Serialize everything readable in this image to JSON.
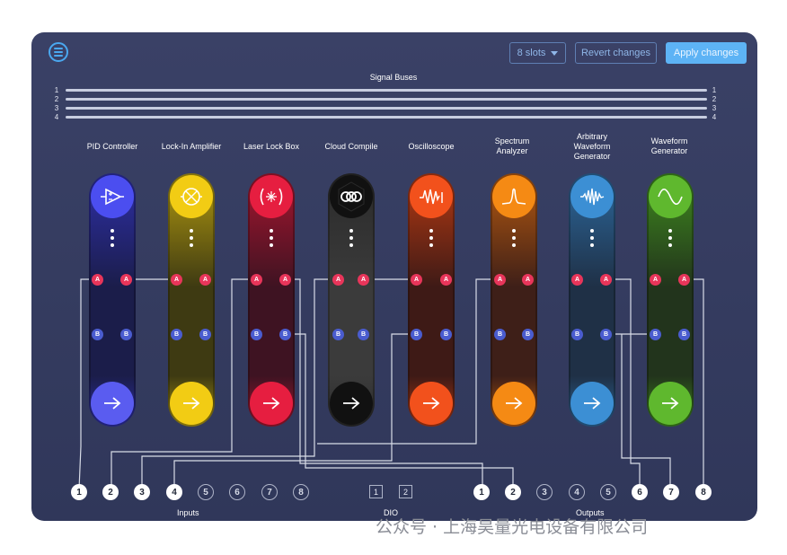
{
  "header": {
    "slots_label": "8 slots",
    "revert_label": "Revert changes",
    "apply_label": "Apply changes"
  },
  "buses": {
    "title": "Signal Buses",
    "numbers": [
      "1",
      "2",
      "3",
      "4"
    ]
  },
  "instruments": [
    {
      "label": "PID Controller",
      "color": "#3f3fd6",
      "icon": "pid-amplifier-icon"
    },
    {
      "label": "Lock-In Amplifier",
      "color": "#e6c21a",
      "icon": "lock-in-icon"
    },
    {
      "label": "Laser Lock Box",
      "color": "#e0203f",
      "icon": "laser-icon"
    },
    {
      "label": "Cloud Compile",
      "color": "#3a3a3a",
      "icon": "cloud-compile-icon"
    },
    {
      "label": "Oscilloscope",
      "color": "#ef4a1a",
      "icon": "oscilloscope-icon"
    },
    {
      "label": "Spectrum\nAnalyzer",
      "color": "#f07a14",
      "icon": "spectrum-icon"
    },
    {
      "label": "Arbitrary\nWaveform\nGenerator",
      "color": "#3a88c9",
      "icon": "awg-icon"
    },
    {
      "label": "Waveform\nGenerator",
      "color": "#5ab02c",
      "icon": "sine-wave-icon"
    }
  ],
  "ports": {
    "a": "A",
    "b": "B"
  },
  "inputs": {
    "label": "Inputs",
    "jacks": [
      {
        "n": "1",
        "on": true
      },
      {
        "n": "2",
        "on": true
      },
      {
        "n": "3",
        "on": true
      },
      {
        "n": "4",
        "on": true
      },
      {
        "n": "5",
        "on": false
      },
      {
        "n": "6",
        "on": false
      },
      {
        "n": "7",
        "on": false
      },
      {
        "n": "8",
        "on": false
      }
    ]
  },
  "dio": {
    "label": "DIO",
    "items": [
      "1",
      "2"
    ]
  },
  "outputs": {
    "label": "Outputs",
    "jacks": [
      {
        "n": "1",
        "on": true
      },
      {
        "n": "2",
        "on": true
      },
      {
        "n": "3",
        "on": false
      },
      {
        "n": "4",
        "on": false
      },
      {
        "n": "5",
        "on": false
      },
      {
        "n": "6",
        "on": true
      },
      {
        "n": "7",
        "on": true
      },
      {
        "n": "8",
        "on": true
      }
    ]
  },
  "watermark": "公众号 · 上海昊量光电设备有限公司"
}
